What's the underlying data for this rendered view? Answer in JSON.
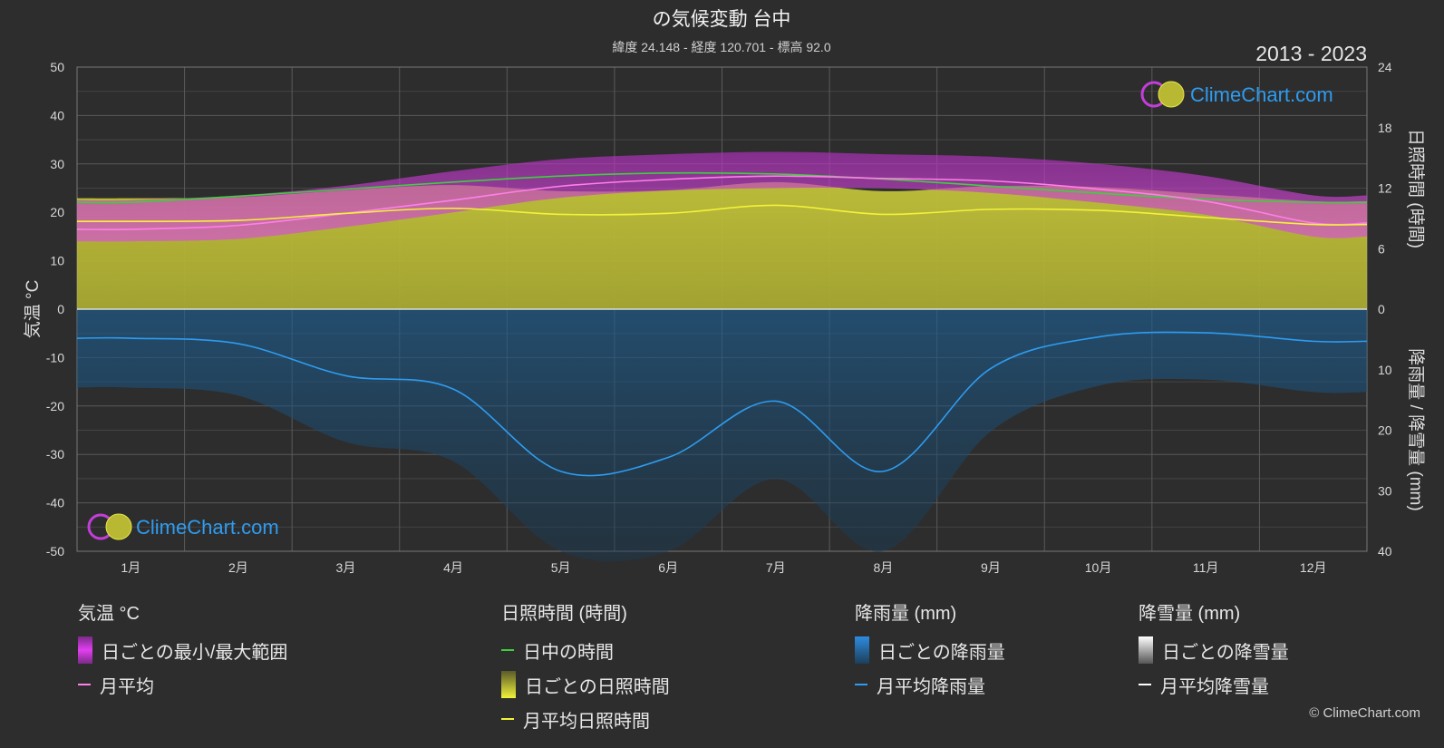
{
  "title": "の気候変動 台中",
  "subtitle": "緯度 24.148 - 経度 120.701 - 標高 92.0",
  "period": "2013 - 2023",
  "watermark": "ClimeChart.com",
  "copyright": "© ClimeChart.com",
  "colors": {
    "background": "#2d2d2d",
    "temp_range": "#d63be0",
    "temp_avg": "#ff7fe9",
    "daylight": "#3ecf3e",
    "sunshine_fill": "#b3b336",
    "sunshine_avg": "#f2f23a",
    "rain_fill": "#1e5a8c",
    "rain_avg": "#2e9cf0",
    "snow_avg": "#ffffff",
    "watermark_text": "#2e9cf0"
  },
  "chart_data": {
    "type": "line",
    "months": [
      "1月",
      "2月",
      "3月",
      "4月",
      "5月",
      "6月",
      "7月",
      "8月",
      "9月",
      "10月",
      "11月",
      "12月"
    ],
    "left_axis": {
      "label": "気温 °C",
      "ticks": [
        50,
        40,
        30,
        20,
        10,
        0,
        -10,
        -20,
        -30,
        -40,
        -50
      ],
      "range": [
        -50,
        50
      ]
    },
    "right_axis_top": {
      "label": "日照時間 (時間)",
      "ticks": [
        24,
        18,
        12,
        6,
        0
      ],
      "range": [
        0,
        24
      ]
    },
    "right_axis_bottom": {
      "label": "降雨量 / 降雪量 (mm)",
      "ticks": [
        0,
        10,
        20,
        30,
        40
      ],
      "range": [
        0,
        40
      ]
    },
    "series": [
      {
        "name": "日中の時間",
        "unit": "時間",
        "values": [
          10.6,
          11.2,
          11.9,
          12.6,
          13.2,
          13.5,
          13.4,
          12.9,
          12.2,
          11.5,
          10.9,
          10.6
        ]
      },
      {
        "name": "月平均日照時間",
        "unit": "時間",
        "values": [
          8.7,
          8.8,
          9.5,
          10.0,
          9.4,
          9.5,
          10.3,
          9.4,
          9.9,
          9.8,
          9.1,
          8.4
        ]
      },
      {
        "name": "月平均",
        "unit": "°C",
        "values": [
          16.5,
          17.3,
          19.8,
          22.5,
          25.4,
          26.8,
          27.5,
          27.0,
          26.5,
          24.8,
          22.3,
          17.8
        ]
      },
      {
        "name": "日ごとの最大",
        "unit": "°C",
        "values": [
          22.5,
          23.5,
          25.5,
          28.5,
          31.0,
          32.0,
          32.5,
          32.0,
          31.5,
          30.0,
          27.5,
          23.5
        ]
      },
      {
        "name": "日ごとの最小",
        "unit": "°C",
        "values": [
          14.0,
          14.5,
          17.0,
          20.0,
          23.0,
          24.5,
          25.0,
          25.0,
          24.0,
          22.0,
          19.5,
          15.0
        ]
      },
      {
        "name": "月平均降雨量",
        "unit": "mm",
        "values": [
          4.8,
          5.7,
          11.0,
          13.2,
          26.8,
          24.5,
          15.2,
          26.8,
          9.8,
          4.6,
          3.9,
          5.3
        ]
      },
      {
        "name": "月平均降雪量",
        "unit": "mm",
        "values": [
          0,
          0,
          0,
          0,
          0,
          0,
          0,
          0,
          0,
          0,
          0,
          0
        ]
      }
    ],
    "grid": true
  },
  "legend": {
    "temperature": {
      "title": "気温 °C",
      "range": "日ごとの最小/最大範囲",
      "avg": "月平均"
    },
    "sunshine": {
      "title": "日照時間 (時間)",
      "daylight": "日中の時間",
      "daily": "日ごとの日照時間",
      "avg": "月平均日照時間"
    },
    "rain": {
      "title": "降雨量 (mm)",
      "daily": "日ごとの降雨量",
      "avg": "月平均降雨量"
    },
    "snow": {
      "title": "降雪量 (mm)",
      "daily": "日ごとの降雪量",
      "avg": "月平均降雪量"
    }
  }
}
